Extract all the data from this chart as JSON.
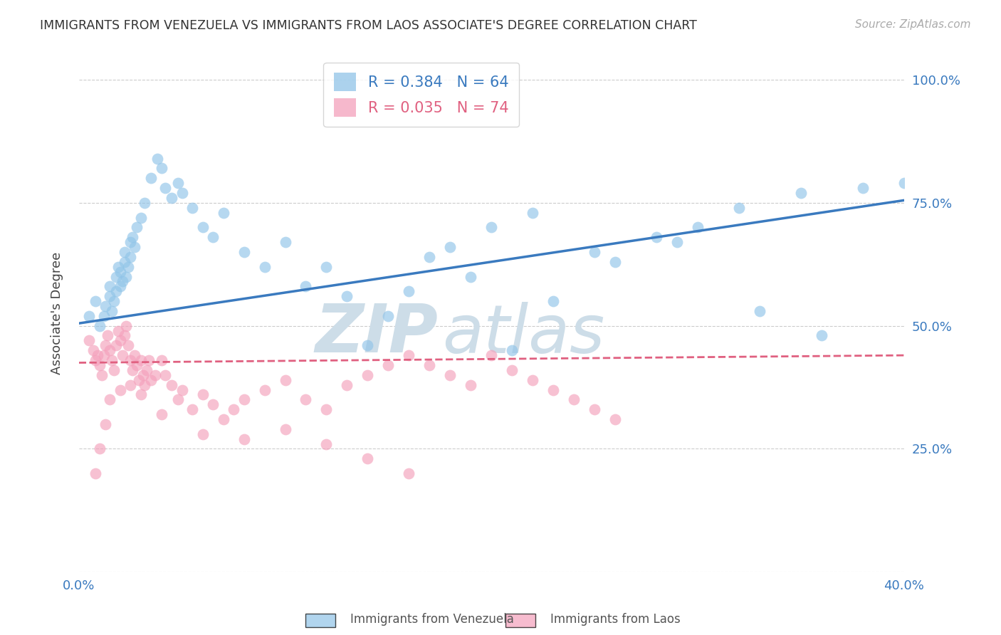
{
  "title": "IMMIGRANTS FROM VENEZUELA VS IMMIGRANTS FROM LAOS ASSOCIATE'S DEGREE CORRELATION CHART",
  "source": "Source: ZipAtlas.com",
  "ylabel": "Associate's Degree",
  "r_venezuela": 0.384,
  "n_venezuela": 64,
  "r_laos": 0.035,
  "n_laos": 74,
  "x_min": 0.0,
  "x_max": 0.4,
  "y_min": 0.0,
  "y_max": 1.05,
  "blue_scatter_color": "#90c4e8",
  "blue_line_color": "#3a7abf",
  "pink_scatter_color": "#f4a0bb",
  "pink_line_color": "#e06080",
  "axis_color": "#3a7abf",
  "grid_color": "#cccccc",
  "legend_blue_label": "Immigrants from Venezuela",
  "legend_pink_label": "Immigrants from Laos",
  "venezuela_x": [
    0.005,
    0.008,
    0.01,
    0.012,
    0.013,
    0.015,
    0.015,
    0.016,
    0.017,
    0.018,
    0.018,
    0.019,
    0.02,
    0.02,
    0.021,
    0.022,
    0.022,
    0.023,
    0.024,
    0.025,
    0.025,
    0.026,
    0.027,
    0.028,
    0.03,
    0.032,
    0.035,
    0.038,
    0.04,
    0.042,
    0.045,
    0.048,
    0.05,
    0.055,
    0.06,
    0.065,
    0.07,
    0.08,
    0.09,
    0.1,
    0.11,
    0.12,
    0.13,
    0.14,
    0.16,
    0.18,
    0.2,
    0.22,
    0.25,
    0.28,
    0.3,
    0.32,
    0.35,
    0.38,
    0.4,
    0.15,
    0.17,
    0.19,
    0.21,
    0.23,
    0.26,
    0.29,
    0.33,
    0.36
  ],
  "venezuela_y": [
    0.52,
    0.55,
    0.5,
    0.52,
    0.54,
    0.56,
    0.58,
    0.53,
    0.55,
    0.57,
    0.6,
    0.62,
    0.58,
    0.61,
    0.59,
    0.63,
    0.65,
    0.6,
    0.62,
    0.67,
    0.64,
    0.68,
    0.66,
    0.7,
    0.72,
    0.75,
    0.8,
    0.84,
    0.82,
    0.78,
    0.76,
    0.79,
    0.77,
    0.74,
    0.7,
    0.68,
    0.73,
    0.65,
    0.62,
    0.67,
    0.58,
    0.62,
    0.56,
    0.46,
    0.57,
    0.66,
    0.7,
    0.73,
    0.65,
    0.68,
    0.7,
    0.74,
    0.77,
    0.78,
    0.79,
    0.52,
    0.64,
    0.6,
    0.45,
    0.55,
    0.63,
    0.67,
    0.53,
    0.48
  ],
  "laos_x": [
    0.005,
    0.007,
    0.008,
    0.009,
    0.01,
    0.011,
    0.012,
    0.013,
    0.014,
    0.015,
    0.016,
    0.017,
    0.018,
    0.019,
    0.02,
    0.021,
    0.022,
    0.023,
    0.024,
    0.025,
    0.026,
    0.027,
    0.028,
    0.029,
    0.03,
    0.031,
    0.032,
    0.033,
    0.034,
    0.035,
    0.037,
    0.04,
    0.042,
    0.045,
    0.048,
    0.05,
    0.055,
    0.06,
    0.065,
    0.07,
    0.075,
    0.08,
    0.09,
    0.1,
    0.11,
    0.12,
    0.13,
    0.14,
    0.15,
    0.16,
    0.17,
    0.18,
    0.19,
    0.2,
    0.21,
    0.22,
    0.23,
    0.24,
    0.25,
    0.26,
    0.1,
    0.12,
    0.14,
    0.16,
    0.08,
    0.06,
    0.04,
    0.03,
    0.025,
    0.02,
    0.015,
    0.013,
    0.01,
    0.008
  ],
  "laos_y": [
    0.47,
    0.45,
    0.43,
    0.44,
    0.42,
    0.4,
    0.44,
    0.46,
    0.48,
    0.45,
    0.43,
    0.41,
    0.46,
    0.49,
    0.47,
    0.44,
    0.48,
    0.5,
    0.46,
    0.43,
    0.41,
    0.44,
    0.42,
    0.39,
    0.43,
    0.4,
    0.38,
    0.41,
    0.43,
    0.39,
    0.4,
    0.43,
    0.4,
    0.38,
    0.35,
    0.37,
    0.33,
    0.36,
    0.34,
    0.31,
    0.33,
    0.35,
    0.37,
    0.39,
    0.35,
    0.33,
    0.38,
    0.4,
    0.42,
    0.44,
    0.42,
    0.4,
    0.38,
    0.44,
    0.41,
    0.39,
    0.37,
    0.35,
    0.33,
    0.31,
    0.29,
    0.26,
    0.23,
    0.2,
    0.27,
    0.28,
    0.32,
    0.36,
    0.38,
    0.37,
    0.35,
    0.3,
    0.25,
    0.2
  ],
  "ven_line_x0": 0.0,
  "ven_line_y0": 0.505,
  "ven_line_x1": 0.4,
  "ven_line_y1": 0.755,
  "laos_line_x0": 0.0,
  "laos_line_y0": 0.425,
  "laos_line_x1": 0.4,
  "laos_line_y1": 0.44
}
